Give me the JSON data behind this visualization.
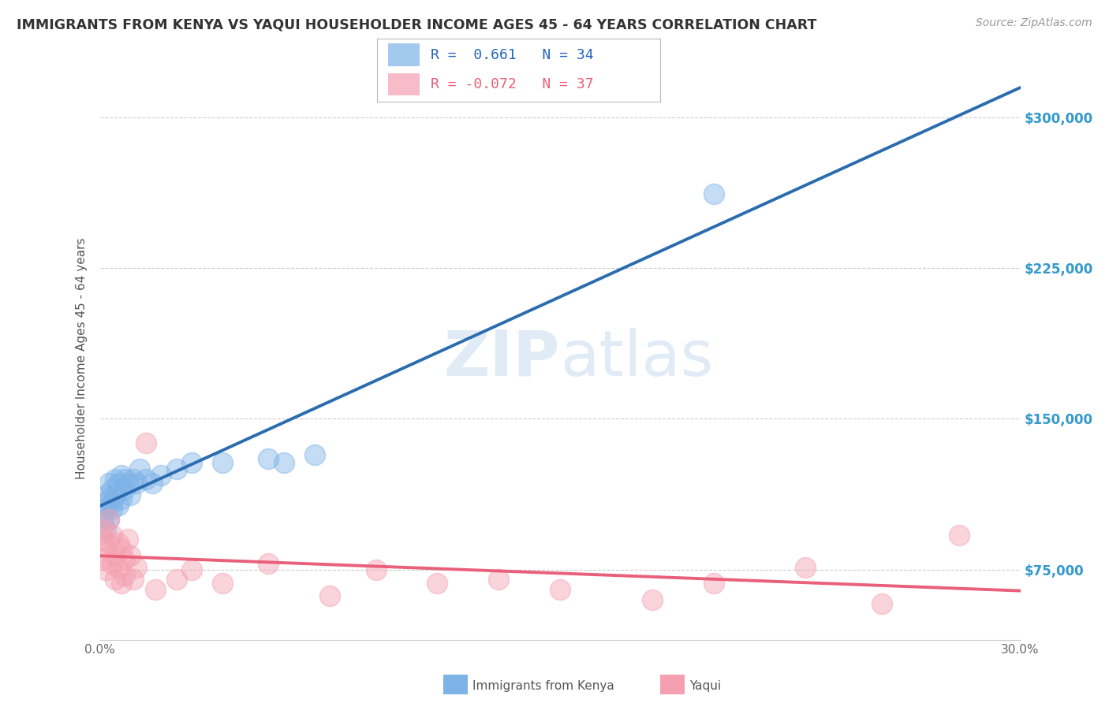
{
  "title": "IMMIGRANTS FROM KENYA VS YAQUI HOUSEHOLDER INCOME AGES 45 - 64 YEARS CORRELATION CHART",
  "source": "Source: ZipAtlas.com",
  "ylabel": "Householder Income Ages 45 - 64 years",
  "watermark_zip": "ZIP",
  "watermark_atlas": "atlas",
  "x_min": 0.0,
  "x_max": 0.3,
  "y_min": 40000,
  "y_max": 320000,
  "y_ticks": [
    75000,
    150000,
    225000,
    300000
  ],
  "x_ticks": [
    0.0,
    0.05,
    0.1,
    0.15,
    0.2,
    0.25,
    0.3
  ],
  "x_tick_labels": [
    "0.0%",
    "",
    "",
    "",
    "",
    "",
    "30.0%"
  ],
  "y_tick_labels": [
    "$75,000",
    "$150,000",
    "$225,000",
    "$300,000"
  ],
  "kenya_color": "#7EB3E8",
  "yaqui_color": "#F4A0B0",
  "kenya_line_color": "#2B6CB0",
  "yaqui_line_color": "#E8607A",
  "kenya_R": "0.661",
  "kenya_N": "34",
  "yaqui_R": "-0.072",
  "yaqui_N": "37",
  "legend_kenya": "Immigrants from Kenya",
  "legend_yaqui": "Yaqui",
  "bg_color": "#FFFFFF",
  "grid_color": "#CCCCCC",
  "title_color": "#333333",
  "source_color": "#999999",
  "kenya_x": [
    0.001,
    0.001,
    0.002,
    0.002,
    0.002,
    0.003,
    0.003,
    0.003,
    0.004,
    0.004,
    0.004,
    0.005,
    0.005,
    0.006,
    0.006,
    0.007,
    0.007,
    0.008,
    0.008,
    0.009,
    0.01,
    0.011,
    0.012,
    0.013,
    0.015,
    0.017,
    0.02,
    0.025,
    0.03,
    0.04,
    0.055,
    0.06,
    0.07,
    0.2
  ],
  "kenya_y": [
    100000,
    108000,
    95000,
    105000,
    112000,
    100000,
    110000,
    118000,
    105000,
    115000,
    108000,
    112000,
    120000,
    107000,
    118000,
    110000,
    122000,
    115000,
    120000,
    118000,
    112000,
    120000,
    118000,
    125000,
    120000,
    118000,
    122000,
    125000,
    128000,
    128000,
    130000,
    128000,
    132000,
    262000
  ],
  "yaqui_x": [
    0.001,
    0.001,
    0.001,
    0.002,
    0.002,
    0.003,
    0.003,
    0.004,
    0.004,
    0.005,
    0.005,
    0.006,
    0.006,
    0.007,
    0.007,
    0.008,
    0.008,
    0.009,
    0.01,
    0.011,
    0.012,
    0.015,
    0.018,
    0.025,
    0.03,
    0.04,
    0.055,
    0.075,
    0.09,
    0.11,
    0.13,
    0.15,
    0.18,
    0.2,
    0.23,
    0.255,
    0.28
  ],
  "yaqui_y": [
    90000,
    80000,
    95000,
    85000,
    75000,
    100000,
    88000,
    78000,
    92000,
    82000,
    70000,
    88000,
    76000,
    85000,
    68000,
    80000,
    72000,
    90000,
    82000,
    70000,
    76000,
    138000,
    65000,
    70000,
    75000,
    68000,
    78000,
    62000,
    75000,
    68000,
    70000,
    65000,
    60000,
    68000,
    76000,
    58000,
    92000
  ]
}
